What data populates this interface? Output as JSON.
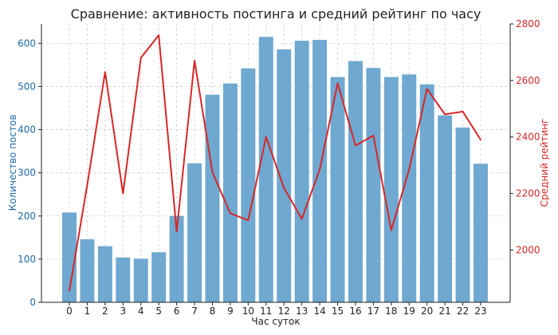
{
  "chart_data": {
    "type": "bar",
    "title": "Сравнение: активность постинга и средний рейтинг по часу",
    "xlabel": "Час суток",
    "ylabel_left": "Количество постов",
    "ylabel_right": "Средний рейтинг",
    "categories": [
      "0",
      "1",
      "2",
      "3",
      "4",
      "5",
      "6",
      "7",
      "8",
      "9",
      "10",
      "11",
      "12",
      "13",
      "14",
      "15",
      "16",
      "17",
      "18",
      "19",
      "20",
      "21",
      "22",
      "23"
    ],
    "ylim_left": [
      0,
      645
    ],
    "yticks_left": [
      0,
      100,
      200,
      300,
      400,
      500,
      600
    ],
    "ylim_right": [
      1815,
      2800
    ],
    "yticks_right": [
      2000,
      2200,
      2400,
      2600,
      2800
    ],
    "grid": true,
    "series": [
      {
        "axis": "left",
        "kind": "bar",
        "color": "#6fa8d0",
        "values": [
          208,
          146,
          130,
          104,
          101,
          116,
          200,
          322,
          481,
          507,
          542,
          615,
          586,
          606,
          608,
          522,
          559,
          543,
          522,
          528,
          505,
          433,
          405,
          321
        ]
      },
      {
        "axis": "right",
        "kind": "line",
        "color": "#d62728",
        "values": [
          1855,
          2230,
          2630,
          2200,
          2680,
          2760,
          2065,
          2670,
          2275,
          2130,
          2105,
          2400,
          2220,
          2110,
          2285,
          2590,
          2370,
          2405,
          2070,
          2285,
          2570,
          2480,
          2490,
          2390
        ]
      }
    ],
    "colors": {
      "left_axis": "#1f6aa5",
      "right_axis": "#d62728",
      "title": "#222222"
    }
  }
}
